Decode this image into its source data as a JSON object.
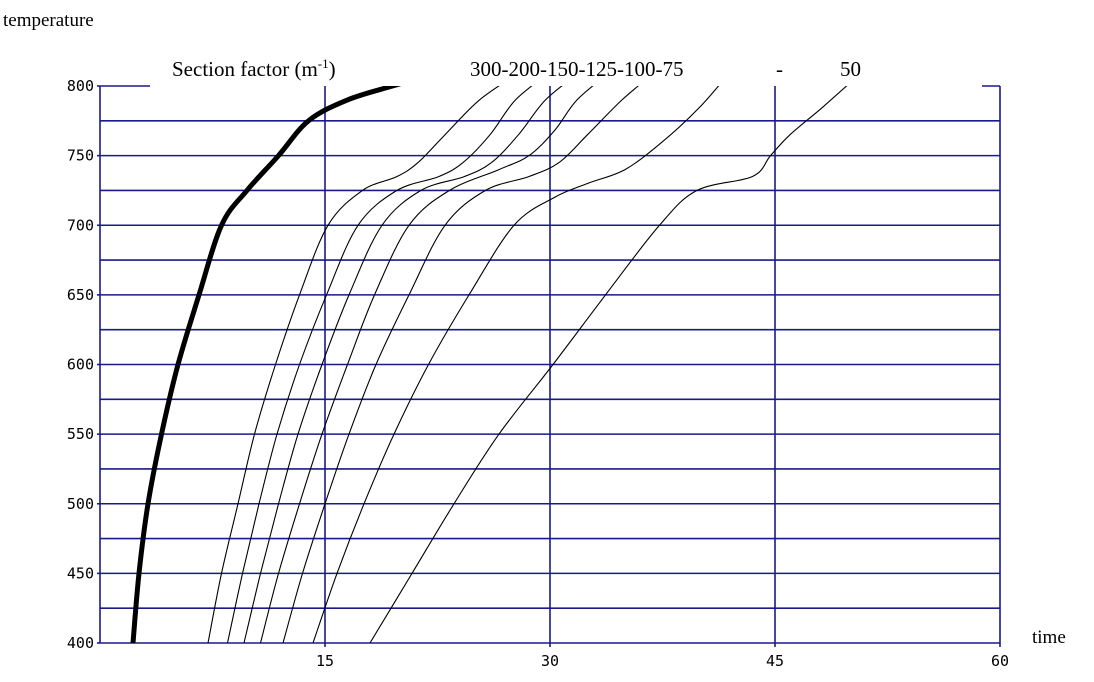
{
  "chart_data": {
    "type": "line",
    "ylabel": "temperature",
    "xlabel": "time",
    "legend": {
      "label": "Section factor (m",
      "superscript": "-1",
      "closing": ")",
      "values_text": "300-200-150-125-100-75",
      "dash": "-",
      "last_value": "50"
    },
    "xlim": [
      0,
      60
    ],
    "ylim": [
      400,
      800
    ],
    "x_ticks": [
      15,
      30,
      45,
      60
    ],
    "x_tick_labels": [
      "15",
      "30",
      "45",
      "60"
    ],
    "y_ticks": [
      400,
      450,
      500,
      550,
      600,
      650,
      700,
      750,
      800
    ],
    "y_tick_labels": [
      "400",
      "450",
      "500",
      "550",
      "600",
      "650",
      "700",
      "750",
      "800"
    ],
    "grid": {
      "horizontal_every": 25,
      "vertical_at": [
        15,
        30,
        45
      ],
      "color": "#1a1a8c"
    },
    "series": [
      {
        "style": "bold",
        "x": [
          2.2,
          2.6,
          3.2,
          4.1,
          5.2,
          6.6,
          8.1,
          9.8,
          11.9,
          13.9,
          16.5,
          19.5,
          22.7
        ],
        "values": [
          400,
          450,
          500,
          550,
          600,
          650,
          700,
          725,
          750,
          775,
          790,
          800,
          810
        ]
      },
      {
        "name": "300",
        "x": [
          7.2,
          8.1,
          9.2,
          10.3,
          11.7,
          13.3,
          15.2,
          17.5,
          19.8,
          21.2,
          23.0,
          25.3,
          28.0
        ],
        "values": [
          400,
          450,
          500,
          550,
          600,
          650,
          700,
          725,
          735,
          745,
          765,
          790,
          810
        ]
      },
      {
        "name": "200",
        "x": [
          8.5,
          9.5,
          10.6,
          11.8,
          13.3,
          15.1,
          17.2,
          19.8,
          22.6,
          24.2,
          26.0,
          27.7,
          30.0
        ],
        "values": [
          400,
          450,
          500,
          550,
          600,
          650,
          700,
          725,
          735,
          745,
          765,
          790,
          810
        ]
      },
      {
        "name": "150",
        "x": [
          9.6,
          10.7,
          11.9,
          13.2,
          14.8,
          16.6,
          18.8,
          21.4,
          24.3,
          26.1,
          27.9,
          29.7,
          32.0
        ],
        "values": [
          400,
          450,
          500,
          550,
          600,
          650,
          700,
          725,
          735,
          745,
          765,
          790,
          810
        ]
      },
      {
        "name": "125",
        "x": [
          10.7,
          11.9,
          13.3,
          14.8,
          16.5,
          18.3,
          20.6,
          23.3,
          26.6,
          28.6,
          30.3,
          31.8,
          34.0
        ],
        "values": [
          400,
          450,
          500,
          550,
          600,
          650,
          700,
          725,
          740,
          750,
          768,
          790,
          810
        ]
      },
      {
        "name": "100",
        "x": [
          12.2,
          13.5,
          15.0,
          16.6,
          18.4,
          20.6,
          23.0,
          25.7,
          28.6,
          30.6,
          32.5,
          34.8,
          37.0
        ],
        "values": [
          400,
          450,
          500,
          550,
          600,
          650,
          700,
          725,
          735,
          745,
          765,
          790,
          810
        ]
      },
      {
        "name": "75",
        "x": [
          14.2,
          15.8,
          17.6,
          19.6,
          21.9,
          24.6,
          27.6,
          30.3,
          32.5,
          35.0,
          37.5,
          40.0,
          42.0
        ],
        "values": [
          400,
          450,
          500,
          550,
          600,
          650,
          700,
          720,
          730,
          740,
          760,
          785,
          810
        ]
      },
      {
        "name": "50",
        "x": [
          18.0,
          20.8,
          23.6,
          26.6,
          30.2,
          33.7,
          37.3,
          39.8,
          43.5,
          44.7,
          46.0,
          48.2,
          50.8
        ],
        "values": [
          400,
          450,
          500,
          550,
          600,
          650,
          700,
          725,
          735,
          750,
          765,
          785,
          810
        ]
      }
    ],
    "colors": {
      "axes": "#1a1a8c",
      "curves": "#000000",
      "text": "#000000"
    }
  }
}
